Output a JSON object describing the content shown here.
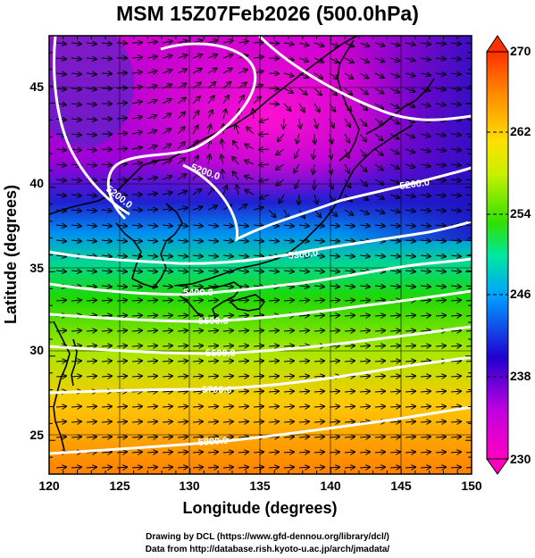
{
  "title": "MSM 15Z07Feb2026 (500.0hPa)",
  "axes": {
    "xlabel": "Longitude (degrees)",
    "ylabel": "Latitude  (degrees)",
    "x_ticks": [
      "120",
      "125",
      "130",
      "135",
      "140",
      "145",
      "150"
    ],
    "y_ticks": [
      "25",
      "30",
      "35",
      "40",
      "45"
    ]
  },
  "colorbar": {
    "ticks": [
      "270",
      "262",
      "254",
      "246",
      "238",
      "230"
    ],
    "colors": [
      "#ff00c0",
      "#c000e0",
      "#2000d0",
      "#00a0ff",
      "#00e8a0",
      "#30e000",
      "#c8f000",
      "#ffe000",
      "#ff8800",
      "#ff3000"
    ]
  },
  "contours": [
    {
      "value": 5200,
      "labels": [
        "5200.0",
        "5200.0",
        "5200.0"
      ]
    },
    {
      "value": 5300,
      "labels": [
        "5300.0"
      ]
    },
    {
      "value": 5400,
      "labels": [
        "5400.0"
      ]
    },
    {
      "value": 5500,
      "labels": [
        "5500.0"
      ]
    },
    {
      "value": 5600,
      "labels": [
        "5600.0"
      ]
    },
    {
      "value": 5700,
      "labels": [
        "5700.0"
      ]
    },
    {
      "value": 5800,
      "labels": [
        "5800.0"
      ]
    }
  ],
  "credits": {
    "line1": "Drawing by DCL (https://www.gfd-dennou.org/library/dcl/)",
    "line2": "Data from http://database.rish.kyoto-u.ac.jp/arch/jmadata/"
  }
}
